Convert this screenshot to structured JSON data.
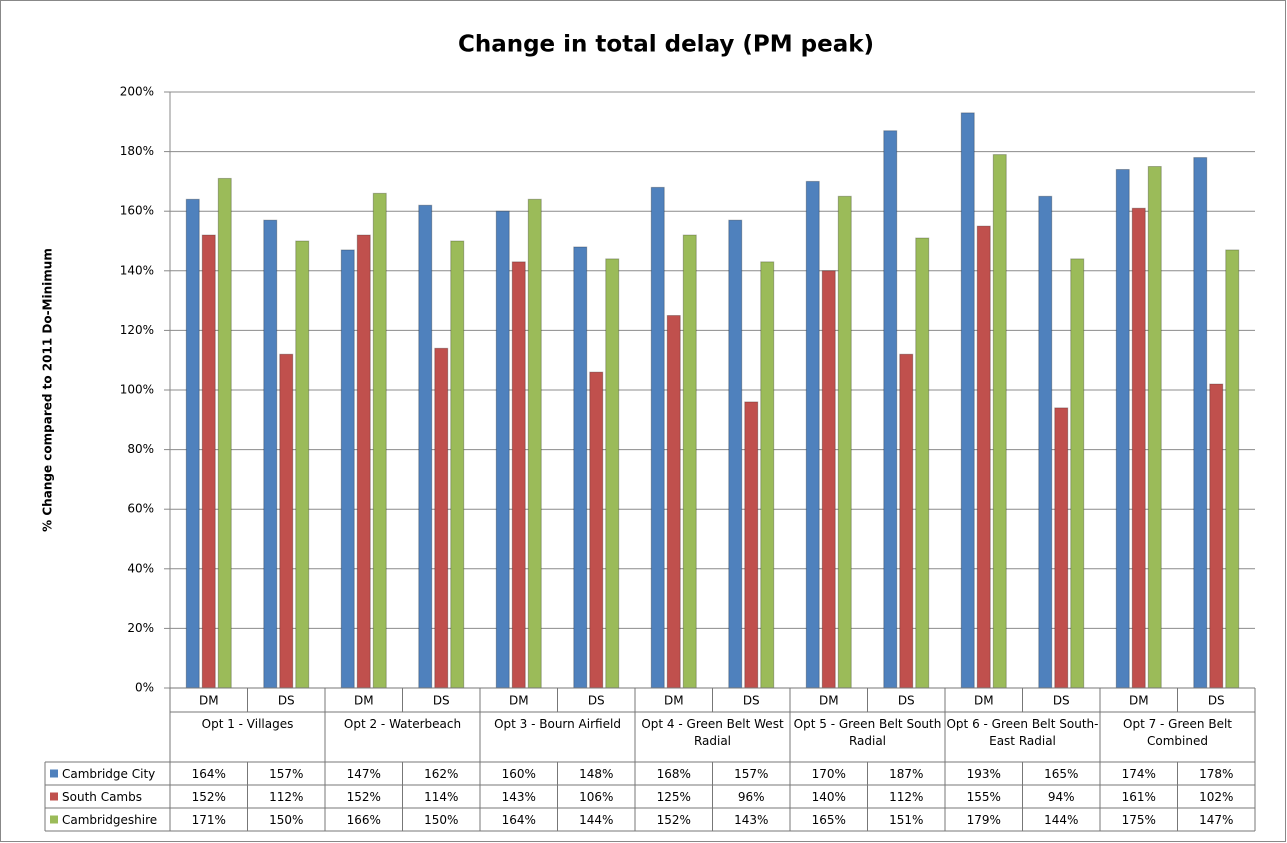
{
  "chart_data": {
    "type": "bar",
    "title": "Change in total delay (PM peak)",
    "y_label": "% Change compared to 2011 Do-Minimum",
    "categories": [
      "DM",
      "DS",
      "DM",
      "DS",
      "DM",
      "DS",
      "DM",
      "DS",
      "DM",
      "DS",
      "DM",
      "DS",
      "DM",
      "DS"
    ],
    "groups": [
      "Opt 1 - Villages",
      "Opt 2 - Waterbeach",
      "Opt 3 - Bourn Airfield",
      "Opt 4 - Green Belt West Radial",
      "Opt 5 - Green Belt South Radial",
      "Opt 6 - Green Belt South-East Radial",
      "Opt 7 - Green Belt Combined"
    ],
    "series": [
      {
        "name": "Cambridge City",
        "color": "#4f81bd",
        "values": [
          164,
          157,
          147,
          162,
          160,
          148,
          168,
          157,
          170,
          187,
          193,
          165,
          174,
          178
        ],
        "value_labels": [
          "164%",
          "157%",
          "147%",
          "162%",
          "160%",
          "148%",
          "168%",
          "157%",
          "170%",
          "187%",
          "193%",
          "165%",
          "174%",
          "178%"
        ]
      },
      {
        "name": "South Cambs",
        "color": "#c0504d",
        "values": [
          152,
          112,
          152,
          114,
          143,
          106,
          125,
          96,
          140,
          112,
          155,
          94,
          161,
          102
        ],
        "value_labels": [
          "152%",
          "112%",
          "152%",
          "114%",
          "143%",
          "106%",
          "125%",
          "96%",
          "140%",
          "112%",
          "155%",
          "94%",
          "161%",
          "102%"
        ]
      },
      {
        "name": "Cambridgeshire",
        "color": "#9bbb59",
        "values": [
          171,
          150,
          166,
          150,
          164,
          144,
          152,
          143,
          165,
          151,
          179,
          144,
          175,
          147
        ],
        "value_labels": [
          "171%",
          "150%",
          "166%",
          "150%",
          "164%",
          "144%",
          "152%",
          "143%",
          "165%",
          "151%",
          "179%",
          "144%",
          "175%",
          "147%"
        ]
      }
    ],
    "ylim": [
      0,
      200
    ],
    "yticks": [
      {
        "value": 0,
        "label": "0%"
      },
      {
        "value": 20,
        "label": "20%"
      },
      {
        "value": 40,
        "label": "40%"
      },
      {
        "value": 60,
        "label": "60%"
      },
      {
        "value": 80,
        "label": "80%"
      },
      {
        "value": 100,
        "label": "100%"
      },
      {
        "value": 120,
        "label": "120%"
      },
      {
        "value": 140,
        "label": "140%"
      },
      {
        "value": 160,
        "label": "160%"
      },
      {
        "value": 180,
        "label": "180%"
      },
      {
        "value": 200,
        "label": "200%"
      }
    ],
    "grid": true
  }
}
